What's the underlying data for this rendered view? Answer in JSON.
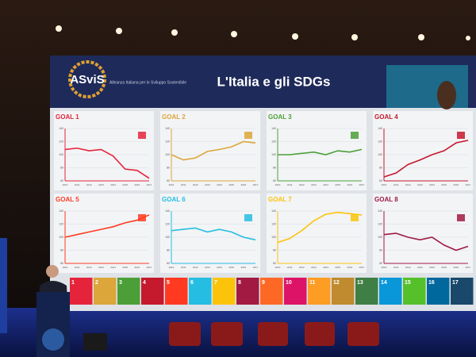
{
  "header": {
    "logo": "ASviS",
    "logo_subtitle": "Alleanza Italiana per lo Sviluppo Sostenibile",
    "title": "L'Italia e gli SDGs"
  },
  "years": [
    "2010",
    "2011",
    "2012",
    "2013",
    "2014",
    "2015",
    "2016",
    "2017"
  ],
  "ylim": [
    60,
    140
  ],
  "yticks": [
    60,
    80,
    100,
    120,
    140
  ],
  "goals": [
    {
      "title": "GOAL 1",
      "color": "#e5243b",
      "values": [
        108,
        110,
        106,
        108,
        98,
        78,
        76,
        64
      ]
    },
    {
      "title": "GOAL 2",
      "color": "#dda63a",
      "values": [
        100,
        92,
        95,
        105,
        108,
        112,
        120,
        118
      ]
    },
    {
      "title": "GOAL 3",
      "color": "#4c9f38",
      "values": [
        100,
        100,
        102,
        104,
        100,
        106,
        104,
        108
      ]
    },
    {
      "title": "GOAL 4",
      "color": "#c5192d",
      "values": [
        66,
        72,
        85,
        92,
        100,
        106,
        118,
        122
      ]
    },
    {
      "title": "GOAL 5",
      "color": "#ff3a21",
      "values": [
        100,
        104,
        108,
        112,
        116,
        122,
        126,
        134
      ]
    },
    {
      "title": "GOAL 6",
      "color": "#26bde2",
      "values": [
        110,
        112,
        114,
        108,
        112,
        108,
        100,
        96
      ]
    },
    {
      "title": "GOAL 7",
      "color": "#fcc30b",
      "values": [
        92,
        98,
        110,
        125,
        135,
        138,
        136,
        134
      ]
    },
    {
      "title": "GOAL 8",
      "color": "#a21942",
      "values": [
        104,
        106,
        100,
        96,
        100,
        88,
        80,
        86
      ]
    }
  ],
  "sdgs": [
    {
      "label": "1",
      "color": "#e5243b"
    },
    {
      "label": "2",
      "color": "#dda63a"
    },
    {
      "label": "3",
      "color": "#4c9f38"
    },
    {
      "label": "4",
      "color": "#c5192d"
    },
    {
      "label": "5",
      "color": "#ff3a21"
    },
    {
      "label": "6",
      "color": "#26bde2"
    },
    {
      "label": "7",
      "color": "#fcc30b"
    },
    {
      "label": "8",
      "color": "#a21942"
    },
    {
      "label": "9",
      "color": "#fd6925"
    },
    {
      "label": "10",
      "color": "#dd1367"
    },
    {
      "label": "11",
      "color": "#fd9d24"
    },
    {
      "label": "12",
      "color": "#bf8b2e"
    },
    {
      "label": "13",
      "color": "#3f7e44"
    },
    {
      "label": "14",
      "color": "#0a97d9"
    },
    {
      "label": "15",
      "color": "#56c02b"
    },
    {
      "label": "16",
      "color": "#00689d"
    },
    {
      "label": "17",
      "color": "#19486a"
    }
  ]
}
